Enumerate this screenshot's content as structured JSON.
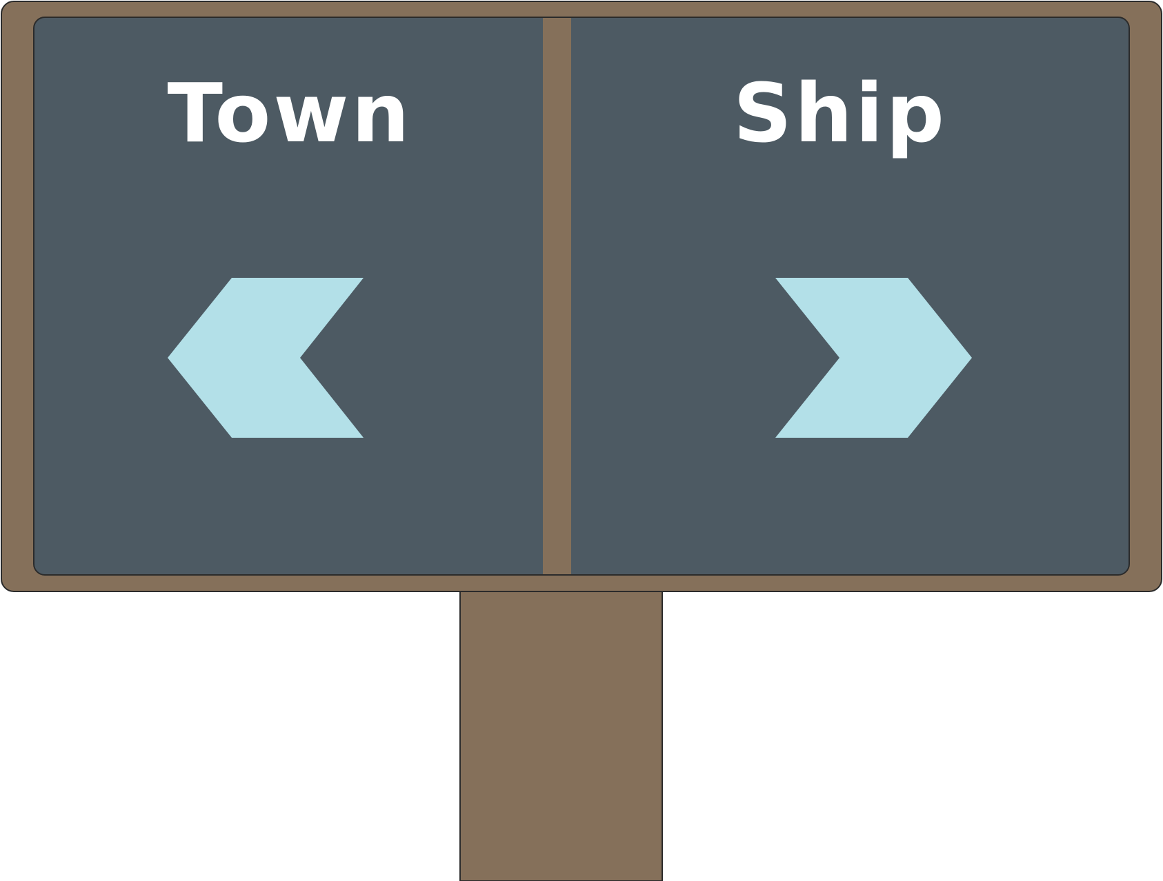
{
  "sign": {
    "left_panel": {
      "label": "Town",
      "arrow_direction": "left",
      "arrow_icon": "chevron-left-arrow-icon"
    },
    "right_panel": {
      "label": "Ship",
      "arrow_direction": "right",
      "arrow_icon": "chevron-right-arrow-icon"
    }
  },
  "colors": {
    "wood": "#85705A",
    "board": "#4D5A63",
    "arrow": "#B3E0E8",
    "text": "#FFFFFF",
    "outline": "#2B2B2B",
    "background": "#FFFFFF"
  }
}
